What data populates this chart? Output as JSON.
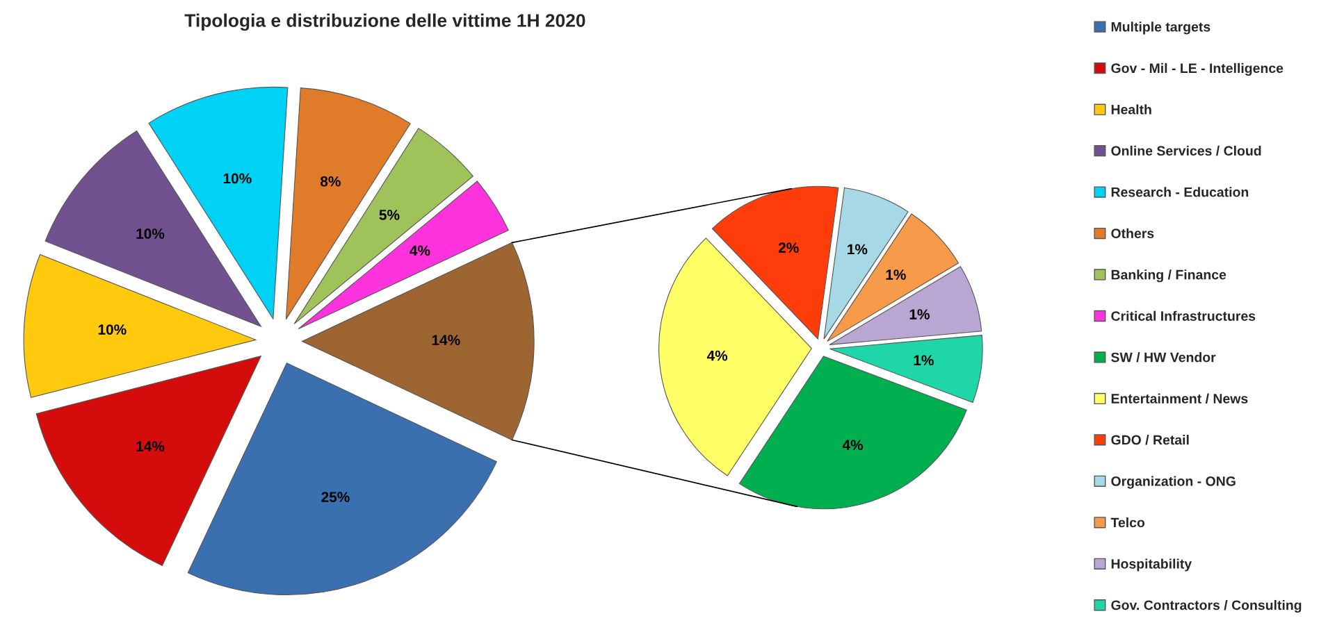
{
  "chart_data": [
    {
      "type": "pie",
      "title": "Tipologia e distribuzione delle vittime 1H 2020",
      "legend": "right",
      "data_labels": true,
      "categories": [
        "Multiple targets",
        "Gov - Mil - LE - Intelligence",
        "Health",
        "Online Services / Cloud",
        "Research - Education",
        "Others",
        "Banking / Finance",
        "Critical Infrastructures",
        null
      ],
      "values": [
        25,
        14,
        10,
        10,
        10,
        8,
        5,
        4,
        14
      ],
      "value_labels": [
        "25%",
        "14%",
        "10%",
        "10%",
        "10%",
        "8%",
        "5%",
        "4%",
        "14%"
      ],
      "colors": [
        "#3a6fb0",
        "#d40c0c",
        "#ffc90e",
        "#71518f",
        "#00d2f5",
        "#e07b2a",
        "#9fc25a",
        "#ff33dd",
        "#9c6532"
      ]
    },
    {
      "type": "pie",
      "legend": "right",
      "data_labels": true,
      "categories": [
        "SW / HW Vendor",
        "Entertainment / News",
        "GDO / Retail",
        "Organization - ONG",
        "Telco",
        "Hospitability",
        "Gov. Contractors / Consulting"
      ],
      "values": [
        4,
        4,
        2,
        1,
        1,
        1,
        1
      ],
      "value_labels": [
        "4%",
        "4%",
        "2%",
        "1%",
        "1%",
        "1%",
        "1%"
      ],
      "colors": [
        "#00b050",
        "#ffff66",
        "#ff3d0a",
        "#a6d8e6",
        "#f79a4a",
        "#b9a6d3",
        "#1fd6a8"
      ]
    }
  ]
}
